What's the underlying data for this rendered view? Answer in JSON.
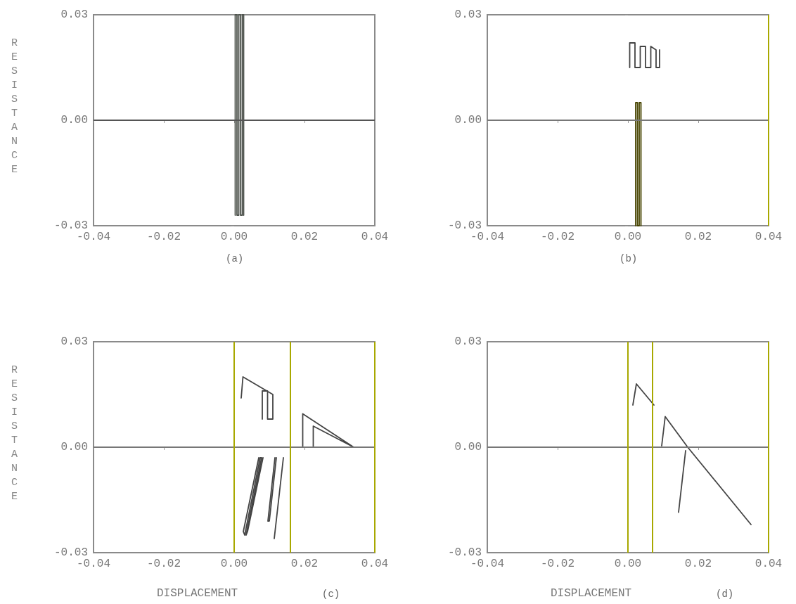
{
  "chart_data": [
    {
      "type": "line",
      "ylabel": "RESISTANCE",
      "annotations": [
        "(a)"
      ],
      "xlim": [
        -0.04,
        0.04
      ],
      "ylim": [
        -0.03,
        0.03
      ],
      "xticks": [
        {
          "value": -0.04,
          "label": "-0.04"
        },
        {
          "value": -0.02,
          "label": "-0.02"
        },
        {
          "value": 0,
          "label": "0.00"
        },
        {
          "value": 0.02,
          "label": "0.02"
        },
        {
          "value": 0.04,
          "label": "0.04"
        }
      ],
      "yticks": [
        {
          "value": -0.03,
          "label": "-0.03"
        },
        {
          "value": 0,
          "label": "0.00"
        },
        {
          "value": 0.03,
          "label": "0.03"
        }
      ],
      "ref_lines": [
        {
          "axis": "y",
          "value": 0,
          "color": "#555555"
        }
      ],
      "series": [
        {
          "color": "#50554f",
          "x": [
            0.0003,
            0.0003,
            0.0008,
            0.0008,
            0.0013,
            0.0013,
            0.0018,
            0.0018,
            0.0023,
            0.0023,
            0.0027,
            0.0027
          ],
          "values": [
            -0.027,
            0.03,
            0.03,
            -0.027,
            -0.027,
            0.03,
            0.03,
            -0.027,
            -0.027,
            0.03,
            0.03,
            -0.027
          ]
        }
      ]
    },
    {
      "type": "line",
      "annotations": [
        "(b)"
      ],
      "xlim": [
        -0.04,
        0.04
      ],
      "ylim": [
        -0.03,
        0.03
      ],
      "xticks": [
        {
          "value": -0.04,
          "label": "-0.04"
        },
        {
          "value": -0.02,
          "label": "-0.02"
        },
        {
          "value": 0,
          "label": "0.00"
        },
        {
          "value": 0.02,
          "label": "0.02"
        },
        {
          "value": 0.04,
          "label": "0.04"
        }
      ],
      "yticks": [
        {
          "value": -0.03,
          "label": "-0.03"
        },
        {
          "value": 0,
          "label": "0.00"
        },
        {
          "value": 0.03,
          "label": "0.03"
        }
      ],
      "ref_lines": [
        {
          "axis": "y",
          "value": 0,
          "color": "#777777"
        },
        {
          "axis": "x",
          "value": 0.04,
          "color": "#a8a800"
        }
      ],
      "series": [
        {
          "color": "#474400",
          "x": [
            0.0022,
            0.0022,
            0.0027,
            0.0027,
            0.0032,
            0.0032,
            0.0037,
            0.0037
          ],
          "values": [
            -0.03,
            0.005,
            0.005,
            -0.03,
            -0.03,
            0.005,
            0.005,
            -0.03
          ]
        },
        {
          "color": "#444444",
          "x": [
            0.0005,
            0.0005,
            0.002,
            0.002,
            0.0035,
            0.0035,
            0.005,
            0.005,
            0.0065,
            0.0065,
            0.008,
            0.008,
            0.009,
            0.009
          ],
          "values": [
            0.015,
            0.022,
            0.022,
            0.015,
            0.015,
            0.021,
            0.021,
            0.015,
            0.015,
            0.021,
            0.02,
            0.015,
            0.015,
            0.02
          ]
        }
      ]
    },
    {
      "type": "line",
      "ylabel": "RESISTANCE",
      "xlabel": "DISPLACEMENT",
      "annotations": [
        "(c)"
      ],
      "xlim": [
        -0.04,
        0.04
      ],
      "ylim": [
        -0.03,
        0.03
      ],
      "xticks": [
        {
          "value": -0.04,
          "label": "-0.04"
        },
        {
          "value": -0.02,
          "label": "-0.02"
        },
        {
          "value": 0,
          "label": "0.00"
        },
        {
          "value": 0.02,
          "label": "0.02"
        },
        {
          "value": 0.04,
          "label": "0.04"
        }
      ],
      "yticks": [
        {
          "value": -0.03,
          "label": "-0.03"
        },
        {
          "value": 0,
          "label": "0.00"
        },
        {
          "value": 0.03,
          "label": "0.03"
        }
      ],
      "ref_lines": [
        {
          "axis": "y",
          "value": 0,
          "color": "#777777"
        },
        {
          "axis": "x",
          "value": 0,
          "color": "#a8a800"
        },
        {
          "axis": "x",
          "value": 0.016,
          "color": "#a8a800"
        },
        {
          "axis": "x",
          "value": 0.04,
          "color": "#a8a800"
        }
      ],
      "series": [
        {
          "color": "#444444",
          "x": [
            0.002,
            0.0025,
            0.011,
            0.011,
            0.0095,
            0.0095,
            0.008,
            0.008
          ],
          "values": [
            0.014,
            0.02,
            0.015,
            0.008,
            0.008,
            0.016,
            0.016,
            0.008
          ]
        },
        {
          "color": "#444444",
          "x": [
            0.0195,
            0.0195,
            0.034,
            0.0225,
            0.0225
          ],
          "values": [
            0,
            0.0095,
            0,
            0.006,
            0
          ]
        },
        {
          "color": "#444444",
          "x": [
            0.007,
            0.0026,
            0.003,
            0.0074,
            0.0078,
            0.0034,
            0.0038,
            0.0082
          ],
          "values": [
            -0.003,
            -0.024,
            -0.025,
            -0.003,
            -0.003,
            -0.025,
            -0.024,
            -0.003
          ]
        },
        {
          "color": "#444444",
          "x": [
            0.0116,
            0.0096,
            0.01,
            0.012
          ],
          "values": [
            -0.003,
            -0.021,
            -0.021,
            -0.003
          ]
        },
        {
          "color": "#444444",
          "x": [
            0.014,
            0.0114
          ],
          "values": [
            -0.003,
            -0.026
          ]
        }
      ]
    },
    {
      "type": "line",
      "xlabel": "DISPLACEMENT",
      "annotations": [
        "(d)"
      ],
      "xlim": [
        -0.04,
        0.04
      ],
      "ylim": [
        -0.03,
        0.03
      ],
      "xticks": [
        {
          "value": -0.04,
          "label": "-0.04"
        },
        {
          "value": -0.02,
          "label": "-0.02"
        },
        {
          "value": 0,
          "label": "0.00"
        },
        {
          "value": 0.02,
          "label": "0.02"
        },
        {
          "value": 0.04,
          "label": "0.04"
        }
      ],
      "yticks": [
        {
          "value": -0.03,
          "label": "-0.03"
        },
        {
          "value": 0,
          "label": "0.00"
        },
        {
          "value": 0.03,
          "label": "0.03"
        }
      ],
      "ref_lines": [
        {
          "axis": "y",
          "value": 0,
          "color": "#777777"
        },
        {
          "axis": "x",
          "value": 0,
          "color": "#a8a800"
        },
        {
          "axis": "x",
          "value": 0.007,
          "color": "#a8a800"
        },
        {
          "axis": "x",
          "value": 0.04,
          "color": "#a8a800"
        }
      ],
      "series": [
        {
          "color": "#444444",
          "x": [
            0.0014,
            0.0024,
            0.0074
          ],
          "values": [
            0.012,
            0.018,
            0.012
          ]
        },
        {
          "color": "#444444",
          "x": [
            0.0096,
            0.0106,
            0.017,
            0.035
          ],
          "values": [
            0.0004,
            0.0087,
            0,
            -0.022
          ]
        },
        {
          "color": "#444444",
          "x": [
            0.0144,
            0.0164
          ],
          "values": [
            -0.0185,
            -0.001
          ]
        }
      ]
    }
  ]
}
